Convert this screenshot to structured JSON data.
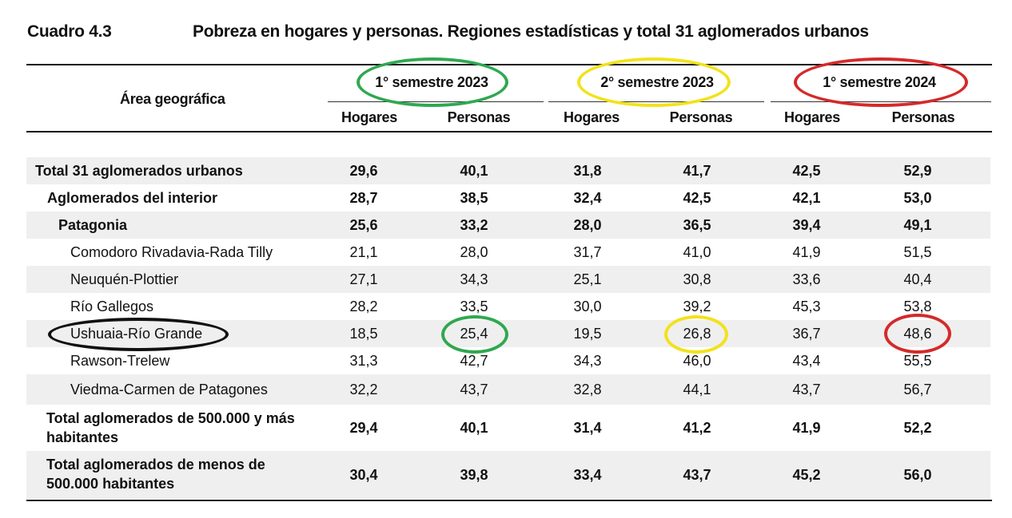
{
  "caption": {
    "number": "Cuadro 4.3",
    "title": "Pobreza en hogares y personas. Regiones estadísticas y total 31 aglomerados urbanos"
  },
  "header": {
    "area": "Área geográfica",
    "periods": [
      "1° semestre 2023",
      "2° semestre 2023",
      "1° semestre 2024"
    ],
    "subcols": [
      "Hogares",
      "Personas",
      "Hogares",
      "Personas",
      "Hogares",
      "Personas"
    ]
  },
  "rows": [
    {
      "name": "Total 31 aglomerados urbanos",
      "values": [
        "29,6",
        "40,1",
        "31,8",
        "41,7",
        "42,5",
        "52,9"
      ]
    },
    {
      "name": "Aglomerados del interior",
      "values": [
        "28,7",
        "38,5",
        "32,4",
        "42,5",
        "42,1",
        "53,0"
      ]
    },
    {
      "name": "Patagonia",
      "values": [
        "25,6",
        "33,2",
        "28,0",
        "36,5",
        "39,4",
        "49,1"
      ]
    },
    {
      "name": "Comodoro Rivadavia-Rada Tilly",
      "values": [
        "21,1",
        "28,0",
        "31,7",
        "41,0",
        "41,9",
        "51,5"
      ]
    },
    {
      "name": "Neuquén-Plottier",
      "values": [
        "27,1",
        "34,3",
        "25,1",
        "30,8",
        "33,6",
        "40,4"
      ]
    },
    {
      "name": "Río Gallegos",
      "values": [
        "28,2",
        "33,5",
        "30,0",
        "39,2",
        "45,3",
        "53,8"
      ]
    },
    {
      "name": "Ushuaia-Río Grande",
      "values": [
        "18,5",
        "25,4",
        "19,5",
        "26,8",
        "36,7",
        "48,6"
      ]
    },
    {
      "name": "Rawson-Trelew",
      "values": [
        "31,3",
        "42,7",
        "34,3",
        "46,0",
        "43,4",
        "55,5"
      ]
    },
    {
      "name": "Viedma-Carmen de Patagones",
      "values": [
        "32,2",
        "43,7",
        "32,8",
        "44,1",
        "43,7",
        "56,7"
      ]
    },
    {
      "name_lines": [
        "Total aglomerados de 500.000 y más",
        "habitantes"
      ],
      "values": [
        "29,4",
        "40,1",
        "31,4",
        "41,2",
        "41,9",
        "52,2"
      ]
    },
    {
      "name_lines": [
        "Total aglomerados de menos de",
        "500.000 habitantes"
      ],
      "values": [
        "30,4",
        "39,8",
        "33,4",
        "43,7",
        "45,2",
        "56,0"
      ]
    }
  ],
  "highlight_colors": {
    "green": "#2fa84f",
    "yellow": "#f2e21a",
    "red": "#d42a2a",
    "black": "#111111"
  }
}
